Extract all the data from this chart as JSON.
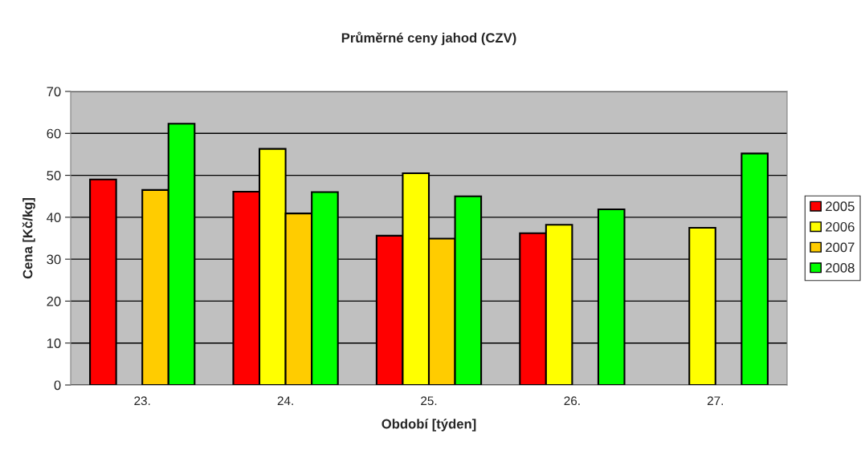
{
  "chart_data": {
    "type": "bar",
    "title": "Průměrné ceny jahod (CZV)",
    "xlabel": "Období [týden]",
    "ylabel": "Cena [Kč/kg]",
    "categories": [
      "23.",
      "24.",
      "25.",
      "26.",
      "27."
    ],
    "series": [
      {
        "name": "2005",
        "color": "#ff0000",
        "values": [
          49.0,
          46.1,
          35.6,
          36.2,
          null
        ]
      },
      {
        "name": "2006",
        "color": "#ffff00",
        "values": [
          null,
          56.3,
          50.5,
          38.2,
          37.5
        ]
      },
      {
        "name": "2007",
        "color": "#ffcc00",
        "values": [
          46.5,
          40.9,
          34.9,
          null,
          null
        ]
      },
      {
        "name": "2008",
        "color": "#00ff00",
        "values": [
          62.3,
          46.0,
          45.0,
          41.9,
          55.2
        ]
      }
    ],
    "ylim": [
      0,
      70
    ],
    "yticks": [
      0,
      10,
      20,
      30,
      40,
      50,
      60,
      70
    ],
    "grid": "y",
    "legend": "right"
  }
}
